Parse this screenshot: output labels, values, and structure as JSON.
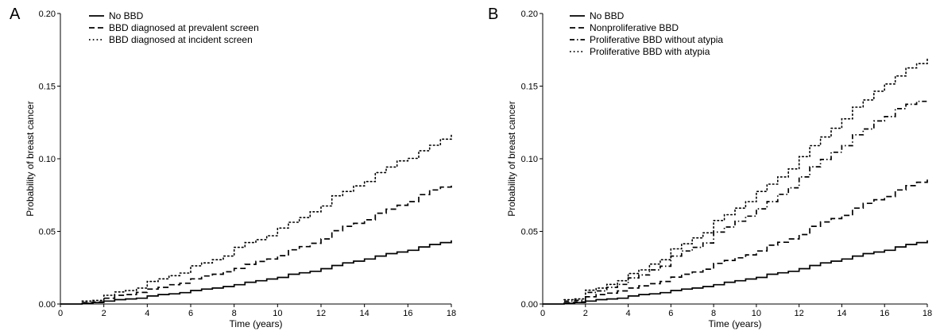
{
  "chart_data": [
    {
      "type": "line",
      "panel_label": "A",
      "title": "",
      "xlabel": "Time (years)",
      "ylabel": "Probability of breast cancer",
      "xlim": [
        0,
        18
      ],
      "ylim": [
        0,
        0.2
      ],
      "x_ticks": [
        0,
        2,
        4,
        6,
        8,
        10,
        12,
        14,
        16,
        18
      ],
      "y_ticks": [
        0.0,
        0.05,
        0.1,
        0.15,
        0.2
      ],
      "x_tick_labels": [
        "0",
        "2",
        "4",
        "6",
        "8",
        "10",
        "12",
        "14",
        "16",
        "18"
      ],
      "y_tick_labels": [
        "0.00",
        "0.05",
        "0.10",
        "0.15",
        "0.20"
      ],
      "grid": false,
      "legend_position": "top-left",
      "series": [
        {
          "name": "No BBD",
          "line_style": "solid",
          "x": [
            0,
            1,
            1.5,
            2,
            2.5,
            3,
            3.5,
            4,
            4.5,
            5,
            5.5,
            6,
            6.5,
            7,
            7.5,
            8,
            8.5,
            9,
            9.5,
            10,
            10.5,
            11,
            11.5,
            12,
            12.5,
            13,
            13.5,
            14,
            14.5,
            15,
            15.5,
            16,
            16.5,
            17,
            17.5,
            18
          ],
          "values": [
            0,
            0.0005,
            0.001,
            0.002,
            0.003,
            0.0035,
            0.004,
            0.0055,
            0.0065,
            0.007,
            0.0078,
            0.0093,
            0.0103,
            0.011,
            0.012,
            0.0133,
            0.015,
            0.016,
            0.0172,
            0.0183,
            0.0205,
            0.0215,
            0.0225,
            0.0243,
            0.0265,
            0.0283,
            0.0295,
            0.031,
            0.033,
            0.0347,
            0.0358,
            0.037,
            0.0393,
            0.041,
            0.0423,
            0.0438
          ]
        },
        {
          "name": "BBD diagnosed at prevalent screen",
          "line_style": "dashed",
          "x": [
            1,
            1.5,
            2,
            2.5,
            3,
            3.5,
            4,
            4.5,
            5,
            5.5,
            6,
            6.5,
            7,
            7.5,
            8,
            8.5,
            9,
            9.5,
            10,
            10.5,
            11,
            11.5,
            12,
            12.5,
            13,
            13.5,
            14,
            14.5,
            15,
            15.5,
            16,
            16.5,
            17,
            17.5,
            18
          ],
          "values": [
            0.001,
            0.0015,
            0.004,
            0.006,
            0.0065,
            0.008,
            0.0103,
            0.0115,
            0.0133,
            0.0143,
            0.0173,
            0.0193,
            0.0205,
            0.0222,
            0.0245,
            0.0273,
            0.0293,
            0.031,
            0.0333,
            0.0373,
            0.0395,
            0.0418,
            0.0448,
            0.0505,
            0.0535,
            0.0555,
            0.058,
            0.0625,
            0.0653,
            0.068,
            0.0705,
            0.0753,
            0.0785,
            0.0805,
            0.0823
          ]
        },
        {
          "name": "BBD diagnosed at incident screen",
          "line_style": "dotted",
          "x": [
            1,
            1.5,
            2,
            2.5,
            3,
            3.5,
            4,
            4.5,
            5,
            5.5,
            6,
            6.5,
            7,
            7.5,
            8,
            8.5,
            9,
            9.5,
            10,
            10.5,
            11,
            11.5,
            12,
            12.5,
            13,
            13.5,
            14,
            14.5,
            15,
            15.5,
            16,
            16.5,
            17,
            17.5,
            18
          ],
          "values": [
            0.002,
            0.0025,
            0.006,
            0.0083,
            0.0093,
            0.011,
            0.0155,
            0.0173,
            0.0195,
            0.0213,
            0.0263,
            0.0283,
            0.0305,
            0.033,
            0.039,
            0.0423,
            0.0443,
            0.047,
            0.0523,
            0.0563,
            0.0595,
            0.0635,
            0.0675,
            0.0745,
            0.0775,
            0.0813,
            0.0843,
            0.0905,
            0.0943,
            0.0985,
            0.1003,
            0.1055,
            0.1093,
            0.1135,
            0.1175
          ]
        }
      ]
    },
    {
      "type": "line",
      "panel_label": "B",
      "title": "",
      "xlabel": "Time (years)",
      "ylabel": "Probability of breast cancer",
      "xlim": [
        0,
        18
      ],
      "ylim": [
        0,
        0.2
      ],
      "x_ticks": [
        0,
        2,
        4,
        6,
        8,
        10,
        12,
        14,
        16,
        18
      ],
      "y_ticks": [
        0.0,
        0.05,
        0.1,
        0.15,
        0.2
      ],
      "x_tick_labels": [
        "0",
        "2",
        "4",
        "6",
        "8",
        "10",
        "12",
        "14",
        "16",
        "18"
      ],
      "y_tick_labels": [
        "0.00",
        "0.05",
        "0.10",
        "0.15",
        "0.20"
      ],
      "grid": false,
      "legend_position": "top-left",
      "series": [
        {
          "name": "No BBD",
          "line_style": "solid",
          "x": [
            0,
            1,
            1.5,
            2,
            2.5,
            3,
            3.5,
            4,
            4.5,
            5,
            5.5,
            6,
            6.5,
            7,
            7.5,
            8,
            8.5,
            9,
            9.5,
            10,
            10.5,
            11,
            11.5,
            12,
            12.5,
            13,
            13.5,
            14,
            14.5,
            15,
            15.5,
            16,
            16.5,
            17,
            17.5,
            18
          ],
          "values": [
            0,
            0.0005,
            0.001,
            0.002,
            0.003,
            0.0035,
            0.004,
            0.0055,
            0.0065,
            0.007,
            0.0078,
            0.0093,
            0.0103,
            0.011,
            0.012,
            0.0133,
            0.015,
            0.016,
            0.0172,
            0.0183,
            0.0205,
            0.0215,
            0.0225,
            0.0243,
            0.0265,
            0.0283,
            0.0295,
            0.031,
            0.033,
            0.0347,
            0.0358,
            0.037,
            0.0393,
            0.041,
            0.0423,
            0.0438
          ]
        },
        {
          "name": "Nonproliferative BBD",
          "line_style": "dashed",
          "x": [
            1,
            1.5,
            2,
            2.5,
            3,
            3.5,
            4,
            4.5,
            5,
            5.5,
            6,
            6.5,
            7,
            7.5,
            8,
            8.5,
            9,
            9.5,
            10,
            10.5,
            11,
            11.5,
            12,
            12.5,
            13,
            13.5,
            14,
            14.5,
            15,
            15.5,
            16,
            16.5,
            17,
            17.5,
            18
          ],
          "values": [
            0.001,
            0.0015,
            0.005,
            0.0065,
            0.0075,
            0.009,
            0.011,
            0.0125,
            0.014,
            0.0155,
            0.0185,
            0.0205,
            0.022,
            0.024,
            0.028,
            0.03,
            0.0318,
            0.0338,
            0.0365,
            0.0405,
            0.0425,
            0.0448,
            0.0478,
            0.0535,
            0.0565,
            0.0588,
            0.061,
            0.066,
            0.0693,
            0.0718,
            0.074,
            0.0785,
            0.0815,
            0.0838,
            0.0865
          ]
        },
        {
          "name": "Proliferative BBD without atypia",
          "line_style": "dash-dot",
          "x": [
            1,
            1.5,
            2,
            2.5,
            3,
            3.5,
            4,
            4.5,
            5,
            5.5,
            6,
            6.5,
            7,
            7.5,
            8,
            8.5,
            9,
            9.5,
            10,
            10.5,
            11,
            11.5,
            12,
            12.5,
            13,
            13.5,
            14,
            14.5,
            15,
            15.5,
            16,
            16.5,
            17,
            17.5,
            18
          ],
          "values": [
            0.002,
            0.0025,
            0.008,
            0.009,
            0.0115,
            0.0135,
            0.018,
            0.02,
            0.0235,
            0.026,
            0.033,
            0.0365,
            0.039,
            0.042,
            0.0495,
            0.053,
            0.057,
            0.0605,
            0.0655,
            0.0705,
            0.0755,
            0.08,
            0.0875,
            0.0945,
            0.0995,
            0.1045,
            0.109,
            0.1165,
            0.1205,
            0.126,
            0.129,
            0.1345,
            0.1375,
            0.1395,
            0.1405
          ]
        },
        {
          "name": "Proliferative BBD with atypia",
          "line_style": "dotted",
          "x": [
            1,
            1.5,
            2,
            2.5,
            3,
            3.5,
            4,
            4.5,
            5,
            5.5,
            6,
            6.5,
            7,
            7.5,
            8,
            8.5,
            9,
            9.5,
            10,
            10.5,
            11,
            11.5,
            12,
            12.5,
            13,
            13.5,
            14,
            14.5,
            15,
            15.5,
            16,
            16.5,
            17,
            17.5,
            18
          ],
          "values": [
            0.003,
            0.0035,
            0.0095,
            0.011,
            0.0135,
            0.016,
            0.021,
            0.0235,
            0.0275,
            0.0305,
            0.038,
            0.0415,
            0.0455,
            0.049,
            0.0575,
            0.0615,
            0.066,
            0.0705,
            0.0775,
            0.0825,
            0.0875,
            0.093,
            0.1015,
            0.109,
            0.115,
            0.121,
            0.1275,
            0.1355,
            0.1405,
            0.1465,
            0.1515,
            0.157,
            0.1625,
            0.1655,
            0.1685
          ]
        }
      ]
    }
  ]
}
